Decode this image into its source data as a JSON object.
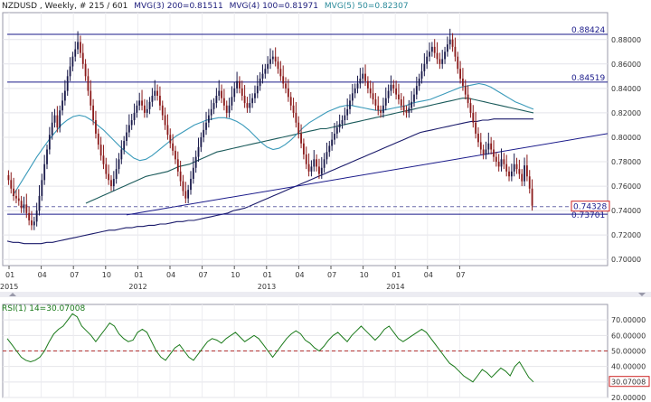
{
  "header": {
    "symbol": "NZDUSD , Weekly, # 215 / 601",
    "mvg1": "MVG(3) 200=0.81511",
    "mvg2": "MVG(4) 100=0.81971",
    "mvg3": "MVG(5) 50=0.82307"
  },
  "rsi_header": "RSI(1) 14=30.07008",
  "colors": {
    "candle_up": "#1a1a4a",
    "candle_down": "#8b1a1a",
    "ma200": "#1a1a6a",
    "ma100": "#1a5a5a",
    "ma50": "#3a9aba",
    "trendline": "#1a1a8a",
    "rsi_line": "#1a7a1a",
    "rsi_50": "#b03030",
    "current_price_box": "#cc2222"
  },
  "chart_data": [
    {
      "type": "candlestick",
      "ylim": [
        0.695,
        0.902
      ],
      "y_ticks": [
        "0.88000",
        "0.86000",
        "0.84000",
        "0.82000",
        "0.80000",
        "0.78000",
        "0.76000",
        "0.74000",
        "0.72000",
        "0.70000"
      ],
      "x_ticks": [
        "01",
        "04",
        "07",
        "10",
        "01",
        "04",
        "07",
        "10",
        "01",
        "04",
        "07",
        "10",
        "01",
        "04",
        "07"
      ],
      "year_labels": [
        "2012",
        "2013",
        "2014",
        "2015"
      ],
      "horizontal_levels": [
        {
          "value": 0.88424,
          "label": "0.88424"
        },
        {
          "value": 0.84519,
          "label": "0.84519"
        },
        {
          "value": 0.73701,
          "label": "0.73701"
        }
      ],
      "current_price": {
        "value": 0.74328,
        "label": "0.74328"
      },
      "series_close": [
        0.765,
        0.758,
        0.752,
        0.75,
        0.748,
        0.742,
        0.745,
        0.738,
        0.732,
        0.728,
        0.731,
        0.74,
        0.752,
        0.765,
        0.778,
        0.79,
        0.802,
        0.812,
        0.818,
        0.808,
        0.822,
        0.83,
        0.838,
        0.85,
        0.858,
        0.866,
        0.872,
        0.878,
        0.869,
        0.86,
        0.85,
        0.838,
        0.826,
        0.814,
        0.803,
        0.794,
        0.785,
        0.778,
        0.77,
        0.765,
        0.76,
        0.766,
        0.774,
        0.782,
        0.79,
        0.797,
        0.804,
        0.81,
        0.814,
        0.82,
        0.826,
        0.83,
        0.826,
        0.82,
        0.823,
        0.829,
        0.834,
        0.838,
        0.834,
        0.826,
        0.818,
        0.81,
        0.802,
        0.795,
        0.789,
        0.782,
        0.772,
        0.764,
        0.756,
        0.75,
        0.757,
        0.766,
        0.775,
        0.784,
        0.792,
        0.8,
        0.806,
        0.812,
        0.818,
        0.823,
        0.828,
        0.834,
        0.838,
        0.832,
        0.826,
        0.82,
        0.826,
        0.833,
        0.84,
        0.846,
        0.84,
        0.834,
        0.828,
        0.824,
        0.828,
        0.832,
        0.836,
        0.842,
        0.848,
        0.852,
        0.856,
        0.86,
        0.864,
        0.866,
        0.862,
        0.856,
        0.85,
        0.844,
        0.84,
        0.833,
        0.826,
        0.82,
        0.812,
        0.803,
        0.795,
        0.786,
        0.778,
        0.772,
        0.776,
        0.782,
        0.776,
        0.77,
        0.775,
        0.782,
        0.788,
        0.793,
        0.798,
        0.803,
        0.808,
        0.811,
        0.814,
        0.818,
        0.823,
        0.83,
        0.836,
        0.84,
        0.844,
        0.848,
        0.852,
        0.846,
        0.84,
        0.836,
        0.831,
        0.826,
        0.822,
        0.82,
        0.826,
        0.832,
        0.838,
        0.843,
        0.84,
        0.835,
        0.831,
        0.826,
        0.822,
        0.82,
        0.824,
        0.829,
        0.835,
        0.842,
        0.848,
        0.854,
        0.86,
        0.866,
        0.87,
        0.874,
        0.869,
        0.864,
        0.86,
        0.864,
        0.87,
        0.876,
        0.88,
        0.874,
        0.866,
        0.856,
        0.848,
        0.842,
        0.835,
        0.828,
        0.82,
        0.812,
        0.803,
        0.796,
        0.79,
        0.786,
        0.79,
        0.795,
        0.79,
        0.784,
        0.78,
        0.776,
        0.782,
        0.778,
        0.772,
        0.768,
        0.772,
        0.778,
        0.774,
        0.77,
        0.764,
        0.777,
        0.768,
        0.758,
        0.744
      ],
      "ma200": [
        0.715,
        0.714,
        0.714,
        0.713,
        0.713,
        0.713,
        0.713,
        0.714,
        0.714,
        0.715,
        0.716,
        0.717,
        0.718,
        0.719,
        0.72,
        0.721,
        0.722,
        0.723,
        0.724,
        0.724,
        0.725,
        0.726,
        0.726,
        0.727,
        0.727,
        0.728,
        0.728,
        0.729,
        0.729,
        0.73,
        0.731,
        0.731,
        0.732,
        0.732,
        0.733,
        0.734,
        0.735,
        0.736,
        0.737,
        0.738,
        0.74,
        0.741,
        0.742,
        0.744,
        0.746,
        0.748,
        0.75,
        0.752,
        0.754,
        0.756,
        0.758,
        0.76,
        0.762,
        0.764,
        0.766,
        0.768,
        0.77,
        0.772,
        0.774,
        0.776,
        0.778,
        0.78,
        0.782,
        0.784,
        0.786,
        0.788,
        0.79,
        0.792,
        0.794,
        0.796,
        0.798,
        0.8,
        0.802,
        0.804,
        0.805,
        0.806,
        0.807,
        0.808,
        0.809,
        0.81,
        0.811,
        0.812,
        0.813,
        0.813,
        0.814,
        0.814,
        0.815,
        0.815,
        0.815,
        0.815,
        0.815,
        0.815,
        0.815,
        0.815
      ],
      "ma100": [
        0.746,
        0.748,
        0.75,
        0.752,
        0.754,
        0.756,
        0.758,
        0.76,
        0.762,
        0.764,
        0.766,
        0.768,
        0.769,
        0.77,
        0.771,
        0.772,
        0.774,
        0.776,
        0.777,
        0.778,
        0.78,
        0.782,
        0.784,
        0.786,
        0.788,
        0.789,
        0.79,
        0.791,
        0.792,
        0.793,
        0.794,
        0.795,
        0.796,
        0.797,
        0.798,
        0.799,
        0.8,
        0.801,
        0.802,
        0.803,
        0.804,
        0.805,
        0.806,
        0.807,
        0.807,
        0.808,
        0.809,
        0.81,
        0.811,
        0.812,
        0.813,
        0.814,
        0.815,
        0.816,
        0.817,
        0.818,
        0.819,
        0.82,
        0.821,
        0.822,
        0.823,
        0.824,
        0.825,
        0.826,
        0.827,
        0.828,
        0.829,
        0.83,
        0.831,
        0.832,
        0.832,
        0.831,
        0.83,
        0.829,
        0.828,
        0.827,
        0.826,
        0.825,
        0.824,
        0.823,
        0.822,
        0.821,
        0.82
      ],
      "ma50": [
        0.752,
        0.76,
        0.768,
        0.776,
        0.784,
        0.791,
        0.798,
        0.804,
        0.81,
        0.814,
        0.817,
        0.818,
        0.817,
        0.814,
        0.81,
        0.806,
        0.801,
        0.796,
        0.791,
        0.787,
        0.783,
        0.781,
        0.782,
        0.785,
        0.789,
        0.793,
        0.797,
        0.801,
        0.804,
        0.807,
        0.81,
        0.812,
        0.814,
        0.815,
        0.816,
        0.816,
        0.815,
        0.813,
        0.81,
        0.806,
        0.801,
        0.796,
        0.792,
        0.79,
        0.791,
        0.794,
        0.798,
        0.803,
        0.808,
        0.812,
        0.815,
        0.818,
        0.821,
        0.823,
        0.825,
        0.826,
        0.826,
        0.825,
        0.824,
        0.823,
        0.822,
        0.822,
        0.823,
        0.824,
        0.825,
        0.826,
        0.828,
        0.829,
        0.83,
        0.831,
        0.833,
        0.835,
        0.837,
        0.839,
        0.841,
        0.842,
        0.843,
        0.844,
        0.843,
        0.841,
        0.838,
        0.835,
        0.832,
        0.829,
        0.827,
        0.825,
        0.823
      ]
    },
    {
      "type": "line",
      "name": "RSI(1) 14",
      "ylim": [
        20,
        80
      ],
      "y_ticks": [
        "70.00000",
        "60.00000",
        "50.00000",
        "40.00000",
        "30.00000",
        "20.00000"
      ],
      "reference_level": 50,
      "current_value": {
        "value": 30.07008,
        "label": "30.07008"
      },
      "values": [
        58,
        54,
        50,
        46,
        44,
        43,
        44,
        46,
        50,
        56,
        61,
        64,
        66,
        70,
        74,
        72,
        66,
        63,
        60,
        56,
        60,
        64,
        68,
        66,
        61,
        58,
        56,
        57,
        62,
        64,
        62,
        56,
        50,
        46,
        44,
        48,
        52,
        54,
        50,
        46,
        44,
        48,
        52,
        56,
        58,
        57,
        55,
        58,
        60,
        62,
        59,
        56,
        58,
        60,
        58,
        54,
        50,
        46,
        50,
        54,
        58,
        61,
        63,
        61,
        57,
        55,
        52,
        50,
        53,
        57,
        60,
        62,
        59,
        56,
        60,
        63,
        66,
        63,
        60,
        57,
        60,
        64,
        66,
        62,
        58,
        56,
        58,
        60,
        62,
        64,
        62,
        58,
        54,
        50,
        46,
        42,
        40,
        37,
        34,
        32,
        30,
        34,
        38,
        36,
        33,
        36,
        39,
        37,
        34,
        40,
        43,
        38,
        33,
        30
      ]
    }
  ]
}
